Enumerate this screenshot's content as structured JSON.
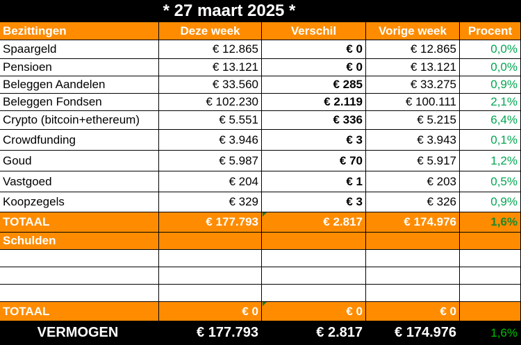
{
  "title": "* 27 maart 2025 *",
  "header": {
    "col0": "Bezittingen",
    "col1": "Deze week",
    "col2": "Verschil",
    "col3": "Vorige week",
    "col4": "Procent"
  },
  "assets": [
    {
      "name": "Spaargeld",
      "this_week": "€ 12.865",
      "diff": "€ 0",
      "last_week": "€ 12.865",
      "pct": "0,0%"
    },
    {
      "name": "Pensioen",
      "this_week": "€ 13.121",
      "diff": "€ 0",
      "last_week": "€ 13.121",
      "pct": "0,0%"
    },
    {
      "name": "Beleggen Aandelen",
      "this_week": "€ 33.560",
      "diff": "€ 285",
      "last_week": "€ 33.275",
      "pct": "0,9%"
    },
    {
      "name": "Beleggen Fondsen",
      "this_week": "€ 102.230",
      "diff": "€ 2.119",
      "last_week": "€ 100.111",
      "pct": "2,1%"
    },
    {
      "name": "Crypto (bitcoin+ethereum)",
      "this_week": "€ 5.551",
      "diff": "€ 336",
      "last_week": "€ 5.215",
      "pct": "6,4%"
    },
    {
      "name": "Crowdfunding",
      "this_week": "€ 3.946",
      "diff": "€ 3",
      "last_week": "€ 3.943",
      "pct": "0,1%"
    },
    {
      "name": "Goud",
      "this_week": "€ 5.987",
      "diff": "€ 70",
      "last_week": "€ 5.917",
      "pct": "1,2%"
    },
    {
      "name": "Vastgoed",
      "this_week": "€ 204",
      "diff": "€ 1",
      "last_week": "€ 203",
      "pct": "0,5%"
    },
    {
      "name": "Koopzegels",
      "this_week": "€ 329",
      "diff": "€ 3",
      "last_week": "€ 326",
      "pct": "0,9%"
    }
  ],
  "assets_total": {
    "label": "TOTAAL",
    "this_week": "€ 177.793",
    "diff": "€ 2.817",
    "last_week": "€ 174.976",
    "pct": "1,6%"
  },
  "debts_header": {
    "label": "Schulden"
  },
  "debts_total": {
    "label": "TOTAAL",
    "this_week": "€ 0",
    "diff": "€ 0",
    "last_week": "€ 0",
    "pct": ""
  },
  "net_worth": {
    "label": "VERMOGEN",
    "this_week": "€ 177.793",
    "diff": "€ 2.817",
    "last_week": "€ 174.976",
    "pct": "1,6%"
  },
  "colors": {
    "accent": "#ff8c00",
    "positive": "#00a651",
    "background": "#000000"
  }
}
